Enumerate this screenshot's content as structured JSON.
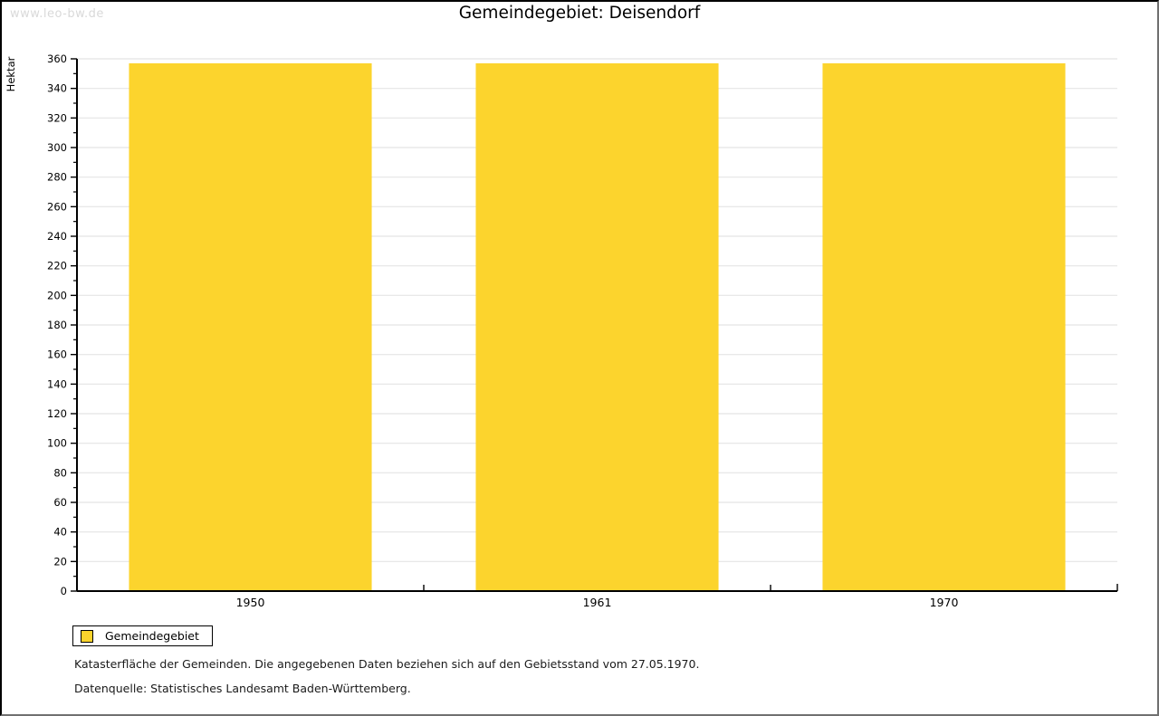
{
  "watermark": "www.leo-bw.de",
  "header": {
    "title": "Gemeindegebiet: Deisendorf"
  },
  "chart_data": {
    "type": "bar",
    "title": "Gemeindegebiet: Deisendorf",
    "categories": [
      "1950",
      "1961",
      "1970"
    ],
    "series": [
      {
        "name": "Gemeindegebiet",
        "values": [
          357,
          357,
          357
        ]
      }
    ],
    "xlabel": "",
    "ylabel": "Hektar",
    "ylim": [
      0,
      360
    ],
    "ytick_step": 20,
    "yminor_step": 10,
    "grid": true,
    "legend_position": "bottom-left",
    "bar_color": "#fcd42d",
    "grid_color": "#e4e4e4",
    "axis_color": "#000000"
  },
  "legend": {
    "items": [
      {
        "label": "Gemeindegebiet",
        "color": "#fcd42d"
      }
    ]
  },
  "footer": {
    "line1": "Katasterfläche der Gemeinden. Die angegebenen Daten beziehen sich auf den Gebietsstand vom 27.05.1970.",
    "line2": "Datenquelle: Statistisches Landesamt Baden-Württemberg."
  },
  "colors": {
    "bar": "#fcd42d",
    "grid": "#e4e4e4",
    "watermark": "#d9d9d9",
    "frame_dark": "#000000",
    "frame_light": "#707070"
  }
}
